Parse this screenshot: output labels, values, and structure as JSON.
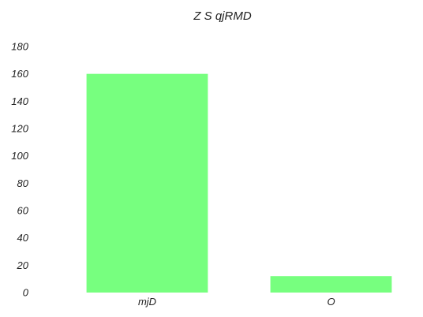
{
  "chart_data": {
    "type": "bar",
    "title": "Z S qjRMD",
    "xlabel": "",
    "ylabel": "",
    "categories": [
      "mjD",
      "O"
    ],
    "values": [
      160,
      12
    ],
    "ylim": [
      0,
      180
    ],
    "yticks": [
      0,
      20,
      40,
      60,
      80,
      100,
      120,
      140,
      160,
      180
    ],
    "grid": false,
    "legend": "none",
    "bar_color": "#77ff7f"
  }
}
